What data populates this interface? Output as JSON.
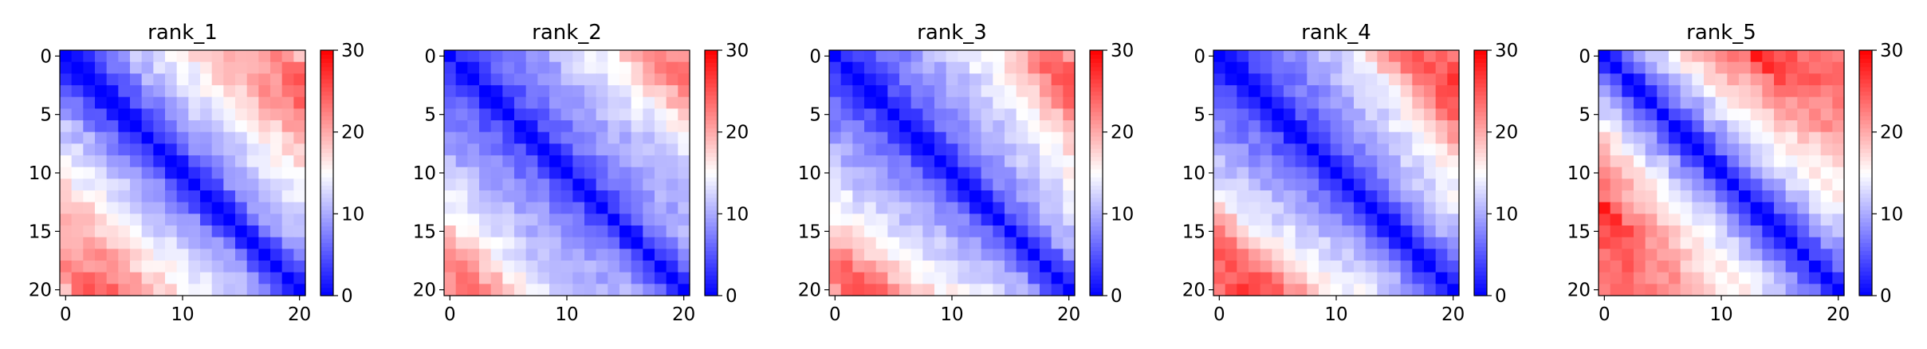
{
  "chart_data": {
    "type": "heatmap",
    "colormap": "bwr",
    "colors": {
      "low": "#0000ff",
      "mid": "#ffffff",
      "high": "#ff0000",
      "text": "#000000"
    },
    "colorbar": {
      "range": [
        0,
        30
      ],
      "ticks": [
        0,
        10,
        20,
        30
      ]
    },
    "x_ticks": [
      0,
      10,
      20
    ],
    "y_ticks": [
      0,
      5,
      10,
      15,
      20
    ],
    "size": 21,
    "panels": [
      {
        "title": "rank_1",
        "row0": [
          0,
          2,
          4,
          6,
          8,
          10,
          11,
          12,
          13,
          14,
          15,
          17,
          18,
          19,
          20,
          19,
          18,
          20,
          22,
          20,
          19
        ],
        "row_last": [
          26,
          25,
          26,
          25,
          24,
          23,
          22,
          20,
          18,
          17,
          16,
          15,
          14,
          13,
          12,
          11,
          10,
          9,
          6,
          3,
          0
        ]
      },
      {
        "title": "rank_2",
        "row0": [
          0,
          2,
          4,
          5,
          6,
          7,
          8,
          9,
          10,
          11,
          12,
          13,
          14,
          15,
          16,
          18,
          20,
          22,
          23,
          21,
          20
        ],
        "row_last": [
          21,
          22,
          23,
          22,
          20,
          19,
          17,
          15,
          14,
          13,
          12,
          12,
          11,
          11,
          10,
          10,
          9,
          8,
          6,
          3,
          0
        ]
      },
      {
        "title": "rank_3",
        "row0": [
          0,
          2,
          4,
          5,
          6,
          7,
          8,
          9,
          10,
          11,
          12,
          13,
          14,
          15,
          16,
          18,
          20,
          22,
          23,
          22,
          20
        ],
        "row_last": [
          26,
          26,
          25,
          26,
          24,
          22,
          20,
          19,
          17,
          16,
          15,
          14,
          13,
          13,
          12,
          11,
          10,
          9,
          6,
          3,
          0
        ]
      },
      {
        "title": "rank_4",
        "row0": [
          0,
          2,
          4,
          5,
          6,
          7,
          8,
          9,
          10,
          11,
          12,
          13,
          14,
          18,
          20,
          22,
          24,
          24,
          23,
          24,
          24
        ],
        "row_last": [
          26,
          26,
          27,
          26,
          25,
          24,
          22,
          20,
          19,
          17,
          16,
          15,
          14,
          13,
          12,
          11,
          10,
          8,
          6,
          3,
          0
        ]
      },
      {
        "title": "rank_5",
        "row0": [
          0,
          3,
          6,
          9,
          11,
          13,
          15,
          17,
          19,
          20,
          21,
          22,
          24,
          28,
          26,
          25,
          25,
          24,
          23,
          22,
          21
        ],
        "row_last": [
          24,
          24,
          24,
          23,
          23,
          22,
          21,
          20,
          19,
          18,
          17,
          16,
          16,
          15,
          13,
          12,
          10,
          8,
          6,
          3,
          0
        ]
      }
    ]
  }
}
